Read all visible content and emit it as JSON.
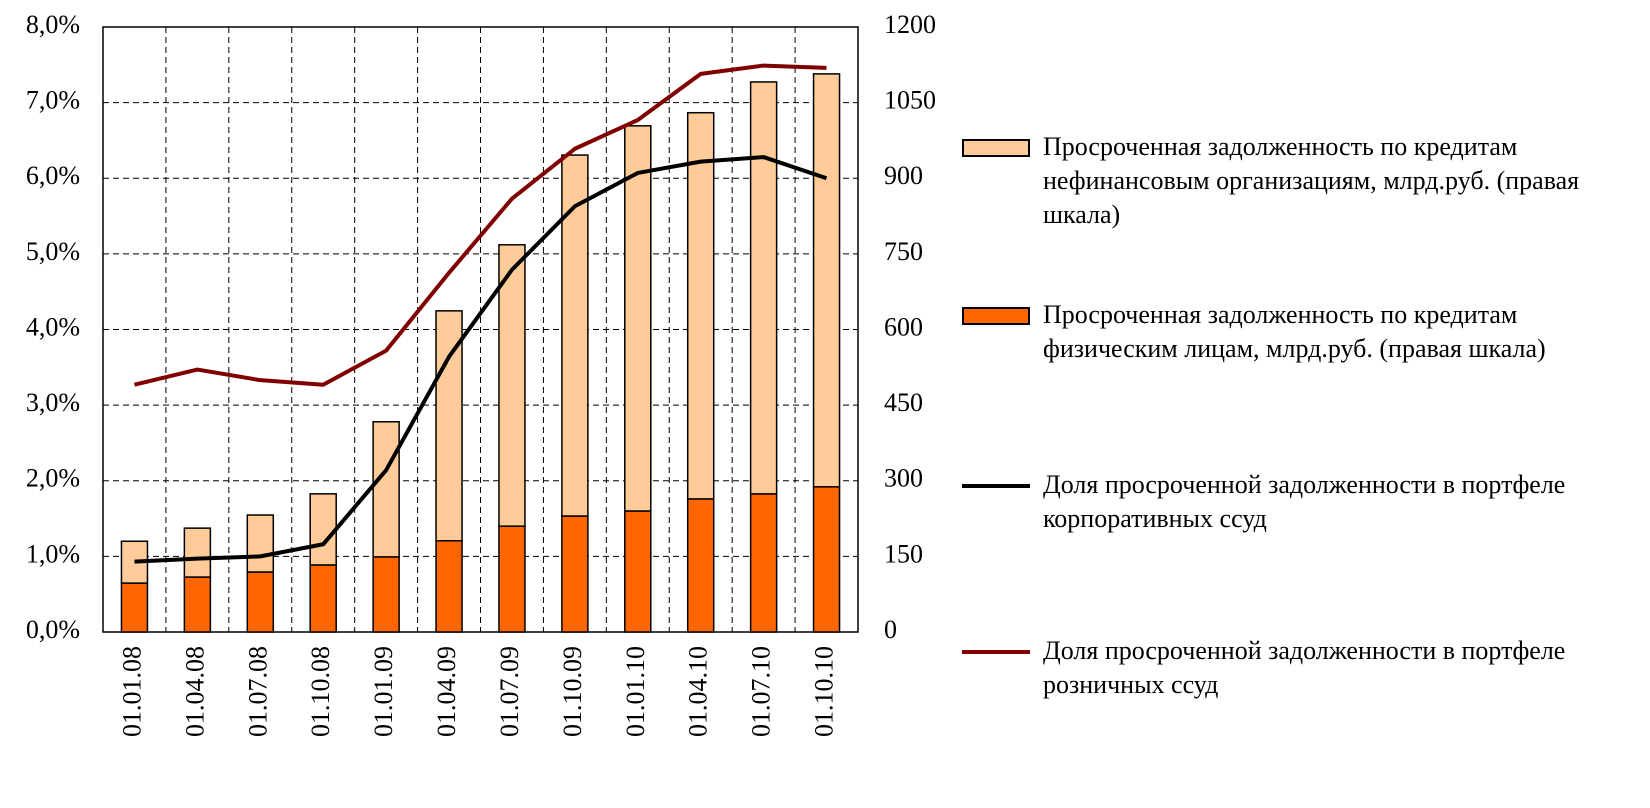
{
  "chart_data": {
    "type": "bar",
    "categories": [
      "01.01.08",
      "01.04.08",
      "01.07.08",
      "01.10.08",
      "01.01.09",
      "01.04.09",
      "01.07.09",
      "01.10.09",
      "01.01.10",
      "01.04.10",
      "01.07.10",
      "01.10.10"
    ],
    "series": [
      {
        "name": "Просроченная задолженность по кредитам нефинансовым организациям, млрд.руб. (правая шкала)",
        "type": "bar",
        "axis": "y2",
        "color": "#ffcc99",
        "values": [
          83,
          97,
          113,
          141,
          268,
          456,
          558,
          716,
          764,
          766,
          817,
          819
        ]
      },
      {
        "name": "Просроченная задолженность по кредитам физическим лицам, млрд.руб. (правая шкала)",
        "type": "bar",
        "axis": "y2",
        "color": "#ff6600",
        "values": [
          97,
          109,
          119,
          133,
          149,
          181,
          210,
          230,
          240,
          264,
          274,
          288
        ]
      },
      {
        "name": "Доля просроченной задолженности в портфеле корпоративных ссуд",
        "type": "line",
        "color": "#000000",
        "values": [
          0.93,
          0.97,
          1.0,
          1.16,
          2.14,
          3.64,
          4.79,
          5.63,
          6.07,
          6.22,
          6.28,
          6.0
        ]
      },
      {
        "name": "Доля просроченной задолженности в портфеле розничных ссуд",
        "type": "line",
        "color": "#800000",
        "values": [
          3.27,
          3.47,
          3.33,
          3.27,
          3.72,
          4.75,
          5.73,
          6.39,
          6.77,
          7.38,
          7.49,
          7.46
        ]
      }
    ],
    "ylim": [
      0,
      8
    ],
    "yticks": [
      {
        "value": 0,
        "label": "0,0%"
      },
      {
        "value": 1,
        "label": "1,0%"
      },
      {
        "value": 2,
        "label": "2,0%"
      },
      {
        "value": 3,
        "label": "3,0%"
      },
      {
        "value": 4,
        "label": "4,0%"
      },
      {
        "value": 5,
        "label": "5,0%"
      },
      {
        "value": 6,
        "label": "6,0%"
      },
      {
        "value": 7,
        "label": "7,0%"
      },
      {
        "value": 8,
        "label": "8,0%"
      }
    ],
    "y2lim": [
      0,
      1200
    ],
    "y2ticks": [
      0,
      150,
      300,
      450,
      600,
      750,
      900,
      1050,
      1200
    ],
    "grid": true
  }
}
